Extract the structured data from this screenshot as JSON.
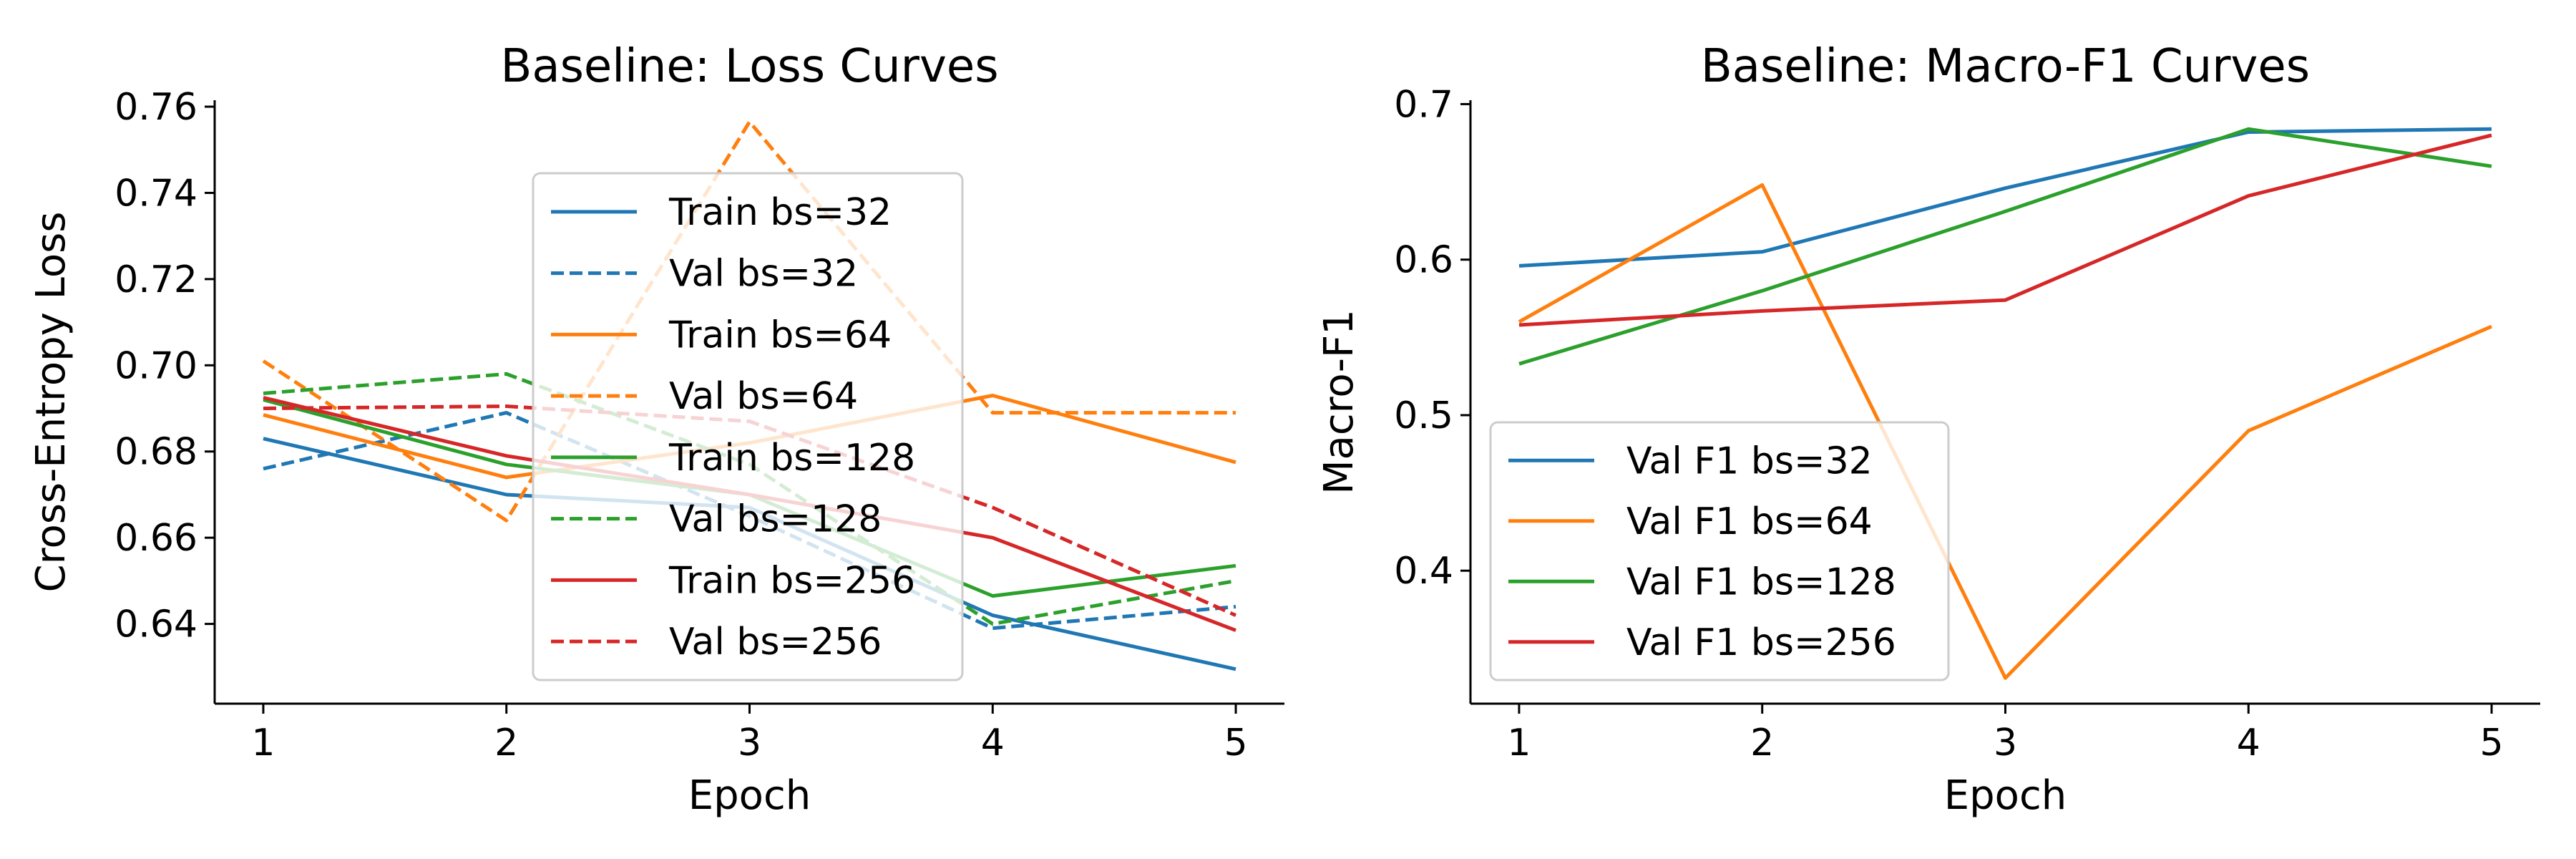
{
  "chart_data": [
    {
      "type": "line",
      "title": "Baseline: Loss Curves",
      "xlabel": "Epoch",
      "ylabel": "Cross-Entropy Loss",
      "x": [
        1,
        2,
        3,
        4,
        5
      ],
      "xlim": [
        0.8,
        5.2
      ],
      "ylim": [
        0.6215,
        0.7615
      ],
      "xticks": [
        1,
        2,
        3,
        4,
        5
      ],
      "yticks": [
        0.64,
        0.66,
        0.68,
        0.7,
        0.72,
        0.74,
        0.76
      ],
      "ytick_labels": [
        "0.64",
        "0.66",
        "0.68",
        "0.70",
        "0.72",
        "0.74",
        "0.76"
      ],
      "legend_position": "upper-center",
      "legend_alpha": 0.8,
      "series": [
        {
          "name": "Train bs=32",
          "color": "#1f77b4",
          "style": "solid",
          "values": [
            0.683,
            0.67,
            0.667,
            0.642,
            0.6295
          ]
        },
        {
          "name": "Val bs=32",
          "color": "#1f77b4",
          "style": "dashed",
          "values": [
            0.676,
            0.689,
            0.665,
            0.639,
            0.644
          ]
        },
        {
          "name": "Train bs=64",
          "color": "#ff7f0e",
          "style": "solid",
          "values": [
            0.6885,
            0.674,
            0.682,
            0.693,
            0.6775
          ]
        },
        {
          "name": "Val bs=64",
          "color": "#ff7f0e",
          "style": "dashed",
          "values": [
            0.701,
            0.664,
            0.7565,
            0.689,
            0.689
          ]
        },
        {
          "name": "Train bs=128",
          "color": "#2ca02c",
          "style": "solid",
          "values": [
            0.692,
            0.677,
            0.67,
            0.6465,
            0.6535
          ]
        },
        {
          "name": "Val bs=128",
          "color": "#2ca02c",
          "style": "dashed",
          "values": [
            0.6935,
            0.698,
            0.677,
            0.64,
            0.65
          ]
        },
        {
          "name": "Train bs=256",
          "color": "#d62728",
          "style": "solid",
          "values": [
            0.6925,
            0.679,
            0.67,
            0.66,
            0.6385
          ]
        },
        {
          "name": "Val bs=256",
          "color": "#d62728",
          "style": "dashed",
          "values": [
            0.69,
            0.6905,
            0.687,
            0.667,
            0.642
          ]
        }
      ]
    },
    {
      "type": "line",
      "title": "Baseline: Macro-F1 Curves",
      "xlabel": "Epoch",
      "ylabel": "Macro-F1",
      "x": [
        1,
        2,
        3,
        4,
        5
      ],
      "xlim": [
        0.8,
        5.2
      ],
      "ylim": [
        0.3145,
        0.7025
      ],
      "xticks": [
        1,
        2,
        3,
        4,
        5
      ],
      "yticks": [
        0.4,
        0.5,
        0.6,
        0.7
      ],
      "ytick_labels": [
        "0.4",
        "0.5",
        "0.6",
        "0.7"
      ],
      "legend_position": "lower-left",
      "legend_alpha": 0.8,
      "series": [
        {
          "name": "Val F1 bs=32",
          "color": "#1f77b4",
          "style": "solid",
          "values": [
            0.596,
            0.605,
            0.646,
            0.682,
            0.684
          ]
        },
        {
          "name": "Val F1 bs=64",
          "color": "#ff7f0e",
          "style": "solid",
          "values": [
            0.56,
            0.648,
            0.331,
            0.49,
            0.557
          ]
        },
        {
          "name": "Val F1 bs=128",
          "color": "#2ca02c",
          "style": "solid",
          "values": [
            0.533,
            0.58,
            0.631,
            0.684,
            0.66
          ]
        },
        {
          "name": "Val F1 bs=256",
          "color": "#d62728",
          "style": "solid",
          "values": [
            0.558,
            0.567,
            0.574,
            0.641,
            0.68
          ]
        }
      ]
    }
  ]
}
